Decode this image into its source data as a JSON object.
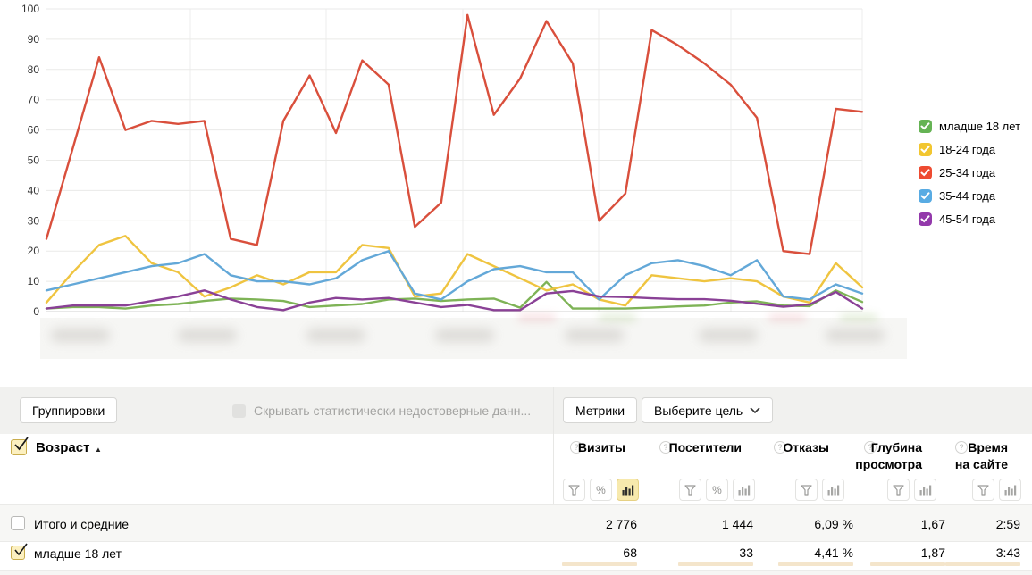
{
  "chart_data": {
    "type": "line",
    "title": "",
    "ylabel": "",
    "xlabel": "",
    "ylim": [
      0,
      100
    ],
    "y_ticks": [
      0,
      10,
      20,
      30,
      40,
      50,
      60,
      70,
      80,
      90,
      100
    ],
    "grid": true,
    "legend_position": "right",
    "x_labels_blurred": true,
    "x_points": 32,
    "series": [
      {
        "name": "младше 18 лет",
        "color": "#7eb356",
        "values": [
          1,
          1.5,
          1.5,
          1,
          2,
          2.5,
          3.5,
          4.3,
          4,
          3.5,
          1.5,
          2,
          2.5,
          4,
          4.3,
          3.5,
          4,
          4.3,
          1.3,
          9.8,
          1,
          1,
          1,
          1.3,
          1.7,
          2,
          3,
          3.4,
          2,
          1.8,
          7,
          3.2
        ]
      },
      {
        "name": "18-24 года",
        "color": "#efc440",
        "values": [
          3,
          13,
          22,
          25,
          16,
          13,
          5,
          8,
          12,
          9,
          13,
          13,
          22,
          21,
          5,
          6,
          19,
          15,
          11,
          7,
          9,
          4,
          2,
          12,
          11,
          10,
          11,
          10,
          5,
          3,
          16,
          8
        ]
      },
      {
        "name": "25-34 года",
        "color": "#d94f3c",
        "values": [
          24,
          54,
          84,
          60,
          63,
          62,
          63,
          24,
          22,
          63,
          78,
          59,
          83,
          75,
          28,
          36,
          98,
          65,
          77,
          96,
          82,
          30,
          39,
          93,
          88,
          82,
          75,
          64,
          20,
          19,
          67,
          66
        ]
      },
      {
        "name": "35-44 года",
        "color": "#63a8d8",
        "values": [
          7,
          9,
          11,
          13,
          15,
          16,
          19,
          12,
          10,
          10,
          9,
          11,
          17,
          20,
          6,
          4,
          10,
          14,
          15,
          13,
          13,
          4,
          12,
          16,
          17,
          15,
          12,
          17,
          5,
          4,
          9,
          6
        ]
      },
      {
        "name": "45-54 года",
        "color": "#8a4196",
        "values": [
          1,
          2,
          2,
          2,
          3.5,
          5,
          7,
          4,
          1.5,
          0.5,
          3,
          4.5,
          4,
          4.5,
          3,
          1.5,
          2.2,
          0.5,
          0.5,
          6,
          6.8,
          5,
          4.8,
          4.4,
          4.1,
          4.1,
          3.6,
          2.6,
          1.6,
          2.4,
          6.5,
          1
        ]
      }
    ]
  },
  "legend": {
    "items": [
      {
        "label": "младше 18 лет",
        "color": "#65b354"
      },
      {
        "label": "18-24 года",
        "color": "#f2c630"
      },
      {
        "label": "25-34 года",
        "color": "#ee4b31"
      },
      {
        "label": "35-44 года",
        "color": "#58abe3"
      },
      {
        "label": "45-54 года",
        "color": "#9339ab"
      }
    ]
  },
  "controls": {
    "groupings_label": "Группировки",
    "hide_unreliable_label": "Скрывать статистически недостоверные данн...",
    "metrics_label": "Метрики",
    "goal_label": "Выберите цель"
  },
  "icons": {
    "percent": "%",
    "help": "?",
    "sort_asc": "▲",
    "filter": "funnel",
    "chart": "bars",
    "chevron": "chevron-down"
  },
  "table": {
    "dimension": {
      "label": "Возраст",
      "sort": "asc",
      "checked": true
    },
    "columns": [
      {
        "label": "Визиты",
        "filters": [
          "funnel",
          "percent",
          "bars"
        ],
        "active_filter": "bars"
      },
      {
        "label": "Посетители",
        "filters": [
          "funnel",
          "percent",
          "bars"
        ],
        "active_filter": null
      },
      {
        "label": "Отказы",
        "filters": [
          "funnel",
          "bars"
        ],
        "active_filter": null
      },
      {
        "label": "Глубина просмотра",
        "filters": [
          "funnel",
          "bars"
        ],
        "active_filter": null
      },
      {
        "label": "Время на сайте",
        "filters": [
          "funnel",
          "bars"
        ],
        "active_filter": null
      }
    ],
    "rows": [
      {
        "label": "Итого и средние",
        "checked": false,
        "values": [
          "2 776",
          "1 444",
          "6,09 %",
          "1,67",
          "2:59"
        ]
      },
      {
        "label": "младше 18 лет",
        "checked": true,
        "values": [
          "68",
          "33",
          "4,41 %",
          "1,87",
          "3:43"
        ],
        "bar_fills": [
          0.05,
          0.05,
          0.42,
          0.97,
          0.85
        ]
      }
    ]
  }
}
